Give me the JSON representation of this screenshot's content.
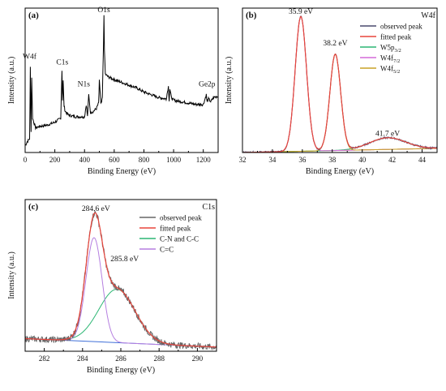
{
  "chart_data": [
    {
      "id": "a",
      "type": "line",
      "panel_label": "(a)",
      "xlabel": "Binding Energy (eV)",
      "ylabel": "Intensity (a.u.)",
      "xlim": [
        0,
        1300
      ],
      "x_ticks": [
        0,
        200,
        400,
        600,
        800,
        1000,
        1200
      ],
      "y_ticks_labeled": false,
      "series": [
        {
          "color": "#000000",
          "x": [
            0,
            15,
            30,
            35,
            38,
            40,
            44,
            50,
            70,
            100,
            150,
            200,
            240,
            248,
            252,
            256,
            262,
            270,
            285,
            300,
            340,
            380,
            400,
            412,
            420,
            428,
            440,
            460,
            480,
            495,
            500,
            510,
            515,
            520,
            528,
            531,
            534,
            540,
            560,
            580,
            600,
            650,
            700,
            750,
            800,
            850,
            900,
            950,
            965,
            970,
            975,
            985,
            1000,
            1050,
            1100,
            1150,
            1200,
            1220,
            1225,
            1235,
            1250,
            1270,
            1300
          ],
          "y": [
            0.05,
            0.08,
            0.1,
            0.62,
            0.3,
            0.15,
            0.55,
            0.25,
            0.18,
            0.19,
            0.2,
            0.22,
            0.25,
            0.6,
            0.38,
            0.52,
            0.34,
            0.3,
            0.28,
            0.27,
            0.26,
            0.26,
            0.26,
            0.35,
            0.26,
            0.42,
            0.29,
            0.3,
            0.32,
            0.36,
            0.52,
            0.36,
            0.36,
            0.4,
            0.8,
            1.0,
            0.75,
            0.57,
            0.55,
            0.54,
            0.53,
            0.51,
            0.49,
            0.47,
            0.44,
            0.42,
            0.4,
            0.39,
            0.48,
            0.38,
            0.46,
            0.4,
            0.38,
            0.37,
            0.36,
            0.35,
            0.35,
            0.42,
            0.37,
            0.39,
            0.37,
            0.4,
            0.41
          ]
        }
      ],
      "ylim": [
        0,
        1.05
      ],
      "annotations": [
        {
          "text": "W4f",
          "x": 30,
          "y": 0.68
        },
        {
          "text": "C1s",
          "x": 250,
          "y": 0.64
        },
        {
          "text": "N1s",
          "x": 395,
          "y": 0.48
        },
        {
          "text": "O1s",
          "x": 530,
          "y": 1.02
        },
        {
          "text": "Ge2p",
          "x": 1225,
          "y": 0.48
        }
      ]
    },
    {
      "id": "b",
      "type": "line",
      "panel_label": "(b)",
      "element_label": "W4f",
      "xlabel": "Binding Energy (eV)",
      "ylabel": "Intensity (a.u.)",
      "xlim": [
        32,
        45
      ],
      "x_ticks": [
        32,
        34,
        36,
        38,
        40,
        42,
        44
      ],
      "y_ticks_labeled": false,
      "ylim": [
        0,
        1.05
      ],
      "baseline": {
        "x0": 32,
        "y0": 0.0,
        "x1": 45,
        "y1": 0.03
      },
      "peaks": [
        {
          "name": "W5p3/2",
          "center": 41.7,
          "height": 0.085,
          "width": 1.2,
          "color": "#2bb673"
        },
        {
          "name": "W4f7/2",
          "center": 35.9,
          "height": 0.98,
          "width": 0.38,
          "color": "#d46ad8"
        },
        {
          "name": "W4f5/2",
          "center": 38.2,
          "height": 0.7,
          "width": 0.36,
          "color": "#c9a227"
        }
      ],
      "legend": [
        {
          "label": "observed peak",
          "color": "#4a4a6e"
        },
        {
          "label": "fitted peak",
          "color": "#e8453c"
        },
        {
          "label": "W5p",
          "sub": "3/2",
          "color": "#2bb673"
        },
        {
          "label": "W4f",
          "sub": "7/2",
          "color": "#d46ad8"
        },
        {
          "label": "W4f",
          "sub": "5/2",
          "color": "#c9a227"
        }
      ],
      "legend_position": "top-right",
      "annotations": [
        {
          "text": "35.9 eV",
          "x": 35.9,
          "y": 1.01
        },
        {
          "text": "38.2 eV",
          "x": 38.2,
          "y": 0.78
        },
        {
          "text": "41.7 eV",
          "x": 41.7,
          "y": 0.12
        }
      ]
    },
    {
      "id": "c",
      "type": "line",
      "panel_label": "(c)",
      "element_label": "C1s",
      "xlabel": "Binding Energy (eV)",
      "ylabel": "Intensity (a.u.)",
      "xlim": [
        281,
        291
      ],
      "x_ticks": [
        282,
        284,
        286,
        288,
        290
      ],
      "y_ticks_labeled": false,
      "ylim": [
        0,
        1.08
      ],
      "baseline": {
        "x0": 281,
        "y0": 0.09,
        "x1": 291,
        "y1": 0.03
      },
      "peaks": [
        {
          "name": "C-N and C-C",
          "center": 285.8,
          "height": 0.38,
          "width": 0.95,
          "color": "#2bb673"
        },
        {
          "name": "C=C",
          "center": 284.6,
          "height": 0.74,
          "width": 0.42,
          "color": "#b57fe0"
        }
      ],
      "legend": [
        {
          "label": "observed peak",
          "color": "#666666"
        },
        {
          "label": "fitted peak",
          "color": "#e8453c"
        },
        {
          "label": "C-N and C-C",
          "color": "#2bb673"
        },
        {
          "label": "C=C",
          "color": "#b57fe0"
        }
      ],
      "baseline_color": "#3f6fd8",
      "legend_position": "top-right",
      "annotations": [
        {
          "text": "284.6 eV",
          "x": 284.7,
          "y": 1.0
        },
        {
          "text": "285.8 eV",
          "x": 286.2,
          "y": 0.64
        }
      ]
    }
  ]
}
